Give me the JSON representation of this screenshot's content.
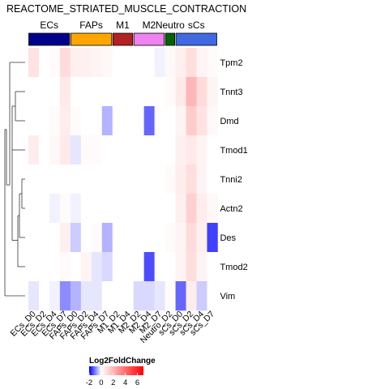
{
  "chart_data": {
    "type": "heatmap",
    "title": "REACTOME_STRIATED_MUSCLE_CONTRACTION",
    "column_groups": [
      {
        "name": "ECs",
        "color": "#00008B",
        "n": 4
      },
      {
        "name": "FAPs",
        "color": "#FFA500",
        "n": 4
      },
      {
        "name": "M1",
        "color": "#B22222",
        "n": 2
      },
      {
        "name": "M2",
        "color": "#EE82EE",
        "n": 3
      },
      {
        "name": "Neutro",
        "color": "#006400",
        "n": 1
      },
      {
        "name": "sCs",
        "color": "#4169E1",
        "n": 4
      }
    ],
    "columns": [
      "ECs_D0",
      "ECs_D2",
      "ECs_D4",
      "ECs_D7",
      "FAPs_D0",
      "FAPs_D2",
      "FAPs_D4",
      "FAPs_D7",
      "M1_D2",
      "M1_D4",
      "M2_D2",
      "M2_D4",
      "M2_D7",
      "Neutro_D2",
      "sCs_D0",
      "sCs_D2",
      "sCs_D4",
      "sCs_D7"
    ],
    "rows": [
      "Tpm2",
      "Tnnt3",
      "Dmd",
      "Tmod1",
      "Tnni2",
      "Actn2",
      "Des",
      "Tmod2",
      "Vim"
    ],
    "values": [
      [
        0.8,
        0,
        0.1,
        1.0,
        0.4,
        0.4,
        0.3,
        0.2,
        0,
        0,
        0,
        0,
        -0.1,
        0.2,
        0.4,
        0.9,
        0.3,
        0.1
      ],
      [
        0,
        0,
        0,
        0.6,
        0,
        0,
        0,
        0,
        0,
        0,
        0,
        0,
        0,
        0.1,
        0.6,
        2.0,
        1.0,
        0.3
      ],
      [
        0,
        0,
        0.1,
        0.5,
        0.1,
        0,
        0,
        -0.6,
        0,
        0,
        0,
        -1.2,
        0,
        0,
        0.3,
        1.4,
        0.8,
        0.2
      ],
      [
        0.5,
        0,
        0.2,
        0.6,
        -0.2,
        0.1,
        0.1,
        0,
        0,
        0,
        0,
        0,
        0,
        0,
        0.4,
        0.6,
        0.3,
        0
      ],
      [
        0,
        0,
        0,
        0,
        0,
        0,
        0,
        0,
        0,
        0,
        0,
        0,
        0,
        0.1,
        0.5,
        0.9,
        0.3,
        0
      ],
      [
        0,
        0,
        -0.1,
        0.1,
        -0.1,
        0,
        0,
        0,
        0,
        0,
        0,
        0,
        0,
        0,
        0.4,
        1.3,
        0.5,
        0.2
      ],
      [
        0,
        0,
        0,
        0.4,
        -0.4,
        0,
        0.1,
        -0.6,
        0,
        0,
        0,
        0,
        0,
        0.1,
        0.3,
        1.0,
        0.4,
        -1.5
      ],
      [
        0,
        0,
        0,
        0.1,
        0,
        0.3,
        -0.2,
        -0.3,
        0,
        0,
        0,
        -1.4,
        0,
        0,
        0.3,
        0.9,
        0.3,
        0
      ],
      [
        -0.2,
        0,
        -0.1,
        -0.9,
        -0.6,
        -0.2,
        -0.2,
        0,
        0,
        0,
        -0.3,
        -0.3,
        -0.2,
        0.1,
        -1.2,
        0.5,
        -0.4,
        0
      ]
    ],
    "legend": {
      "title": "Log2FoldChange",
      "ticks": [
        "-2",
        "0",
        "2",
        "4",
        "6"
      ],
      "min": -2,
      "max": 7,
      "low_color": "#0000FF",
      "mid_color": "#FFFFFF",
      "high_color": "#FF0000"
    }
  }
}
